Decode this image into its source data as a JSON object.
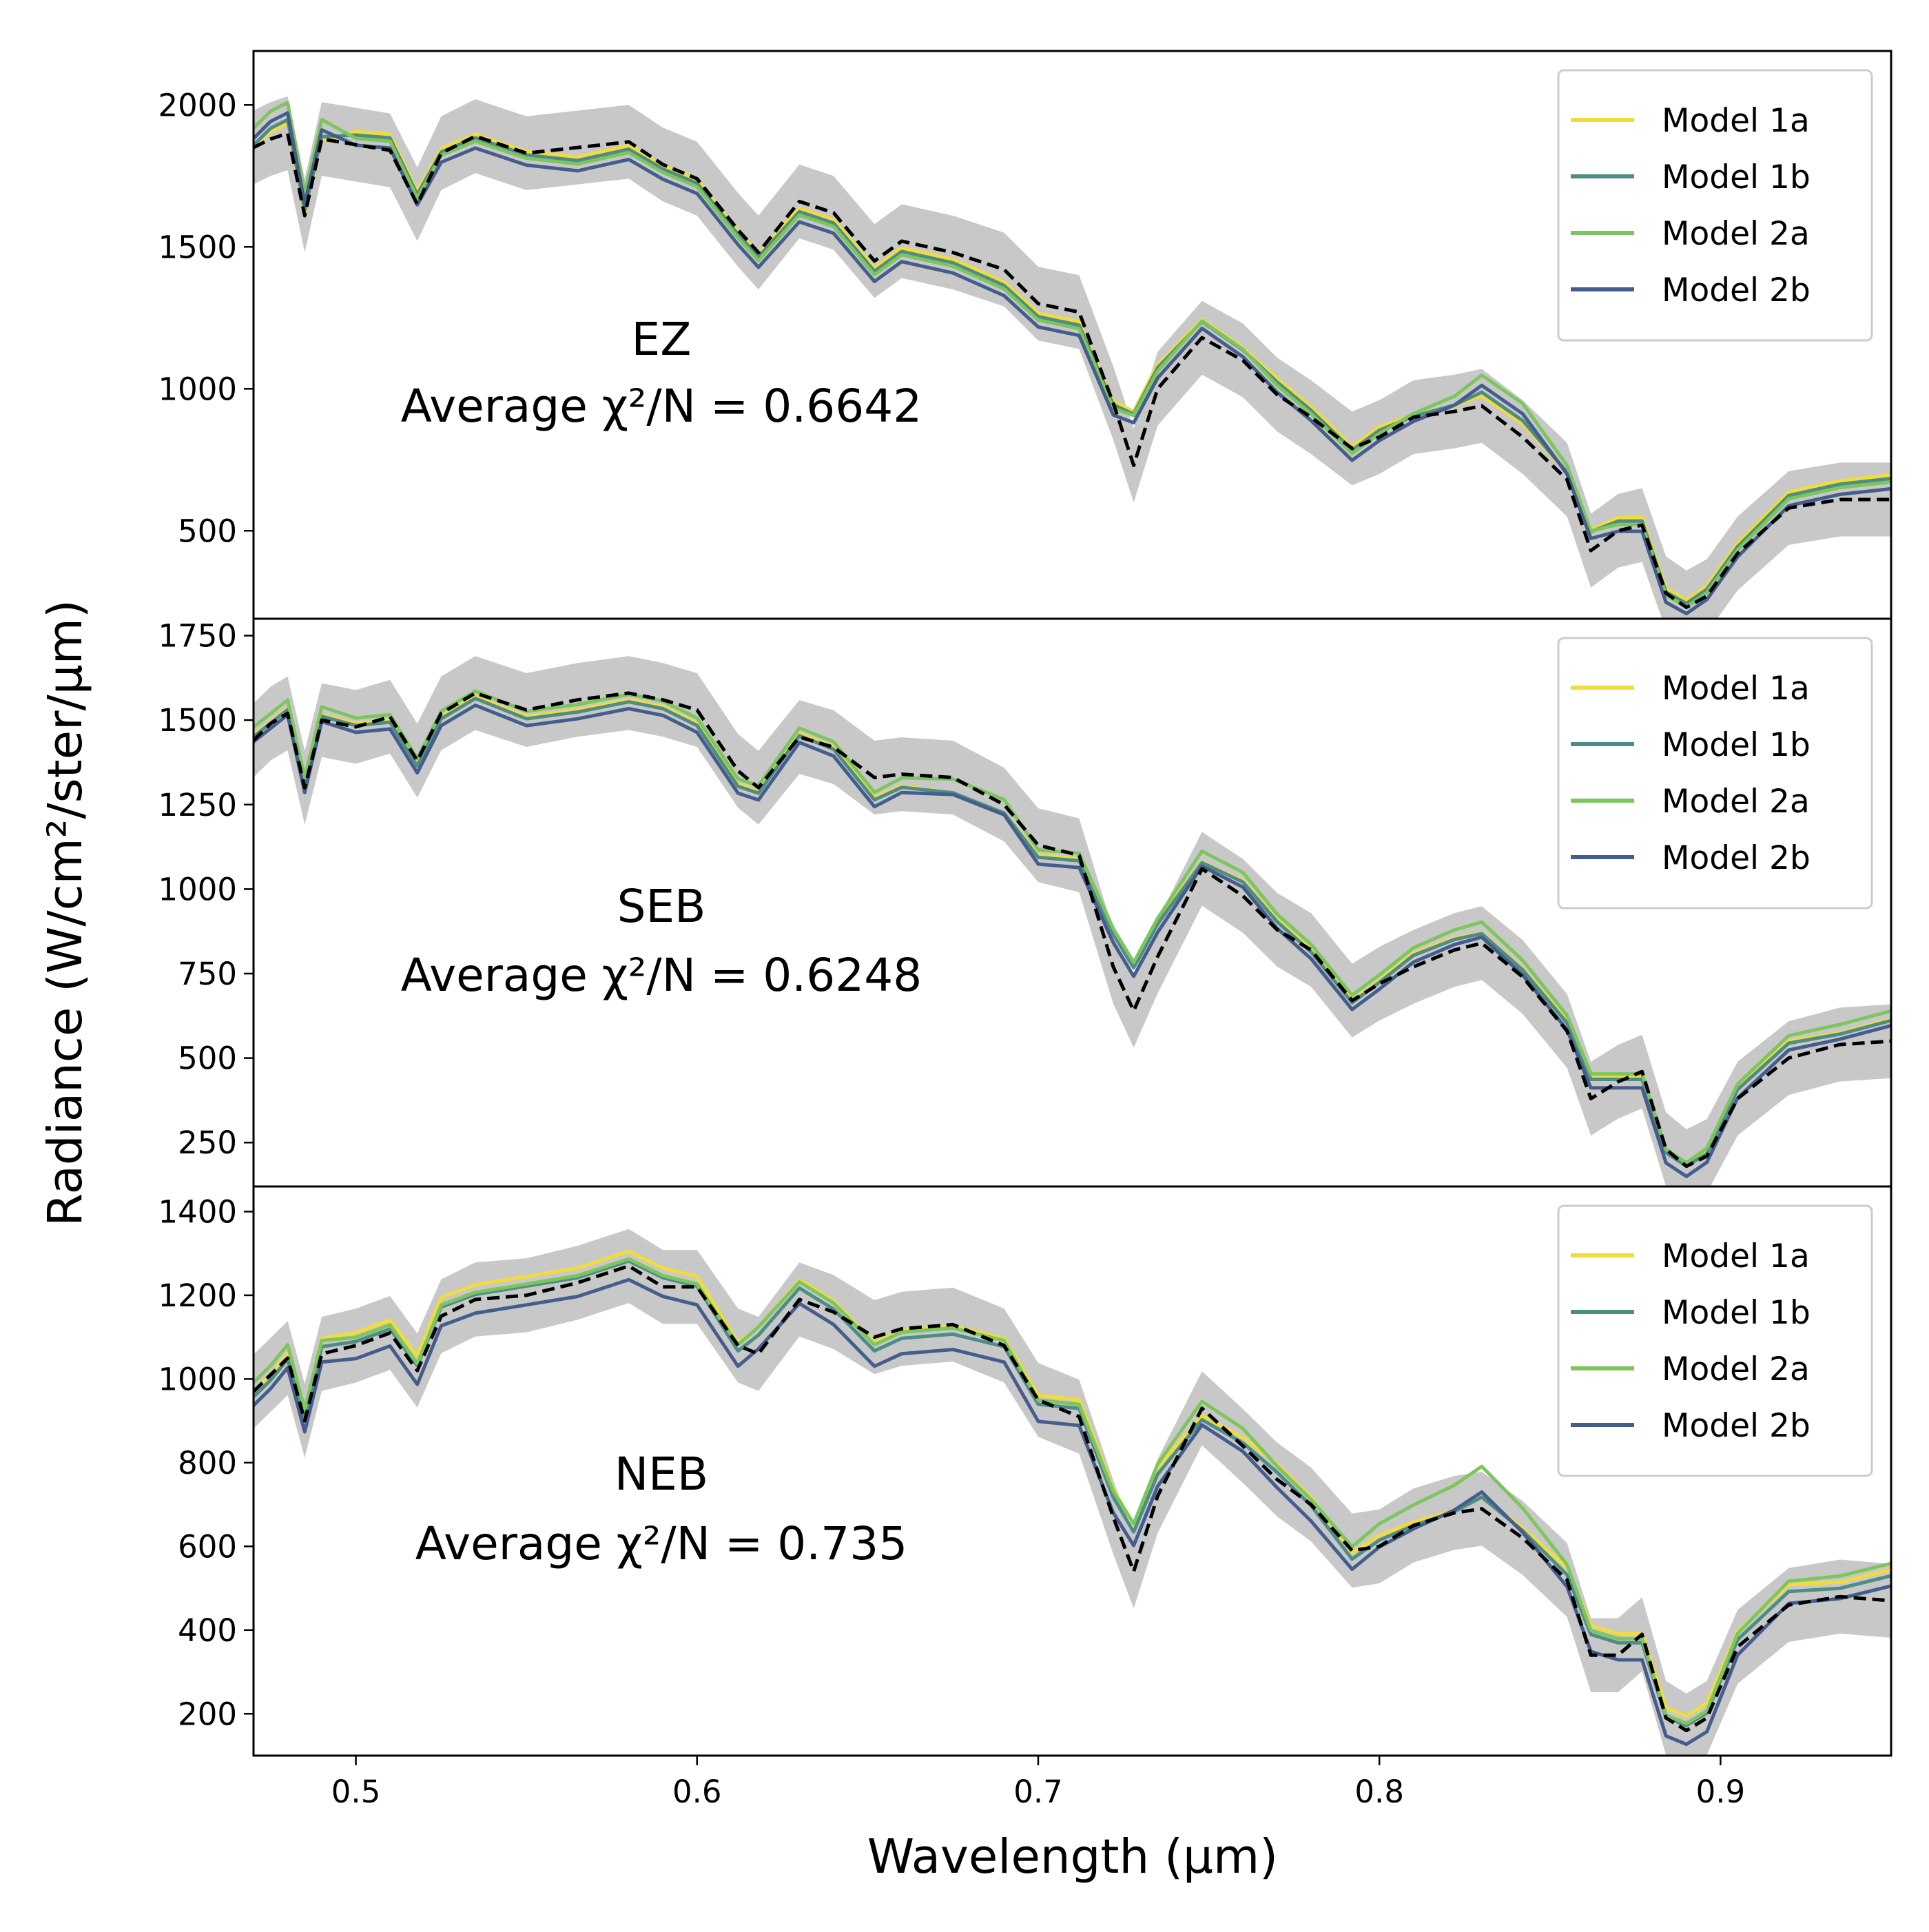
{
  "chart_data": {
    "type": "line",
    "xlabel": "Wavelength (µm)",
    "ylabel": "Radiance (W/cm²/ster/µm)",
    "xlim": [
      0.47,
      0.95
    ],
    "xticks": [
      0.5,
      0.6,
      0.7,
      0.8,
      0.9
    ],
    "xtick_labels": [
      "0.5",
      "0.6",
      "0.7",
      "0.8",
      "0.9"
    ],
    "legend_position": "top-right",
    "colors": {
      "Model 1a": "#f2dc3a",
      "Model 1b": "#4e8c86",
      "Model 2a": "#7dc65e",
      "Model 2b": "#445d8c",
      "observed": "#000000",
      "uncertainty": "#c8c8c8"
    },
    "panels": [
      {
        "region": "EZ",
        "annotation_line1": "EZ",
        "annotation_line2": "Average χ²/N = 0.6642",
        "ylim": [
          190,
          2190
        ],
        "yticks": [
          500,
          1000,
          1500,
          2000
        ],
        "ytick_labels": [
          "500",
          "1000",
          "1500",
          "2000"
        ],
        "legend": [
          "Model 1a",
          "Model 1b",
          "Model 2a",
          "Model 2b"
        ],
        "x": [
          0.47,
          0.475,
          0.48,
          0.485,
          0.49,
          0.5,
          0.51,
          0.518,
          0.525,
          0.535,
          0.55,
          0.565,
          0.58,
          0.59,
          0.6,
          0.612,
          0.618,
          0.63,
          0.64,
          0.652,
          0.66,
          0.675,
          0.69,
          0.7,
          0.712,
          0.722,
          0.728,
          0.735,
          0.748,
          0.76,
          0.77,
          0.78,
          0.792,
          0.8,
          0.81,
          0.822,
          0.83,
          0.842,
          0.855,
          0.862,
          0.87,
          0.877,
          0.884,
          0.89,
          0.896,
          0.905,
          0.92,
          0.935,
          0.95
        ],
        "observed": [
          1850,
          1880,
          1900,
          1610,
          1880,
          1860,
          1840,
          1650,
          1830,
          1890,
          1830,
          1850,
          1870,
          1790,
          1740,
          1560,
          1480,
          1660,
          1620,
          1450,
          1520,
          1480,
          1420,
          1300,
          1270,
          950,
          730,
          1000,
          1180,
          1100,
          980,
          900,
          790,
          830,
          900,
          920,
          940,
          830,
          680,
          430,
          500,
          520,
          280,
          230,
          270,
          420,
          580,
          610,
          610
        ],
        "model": [
          1870,
          1930,
          1960,
          1640,
          1900,
          1870,
          1860,
          1660,
          1810,
          1860,
          1800,
          1780,
          1820,
          1750,
          1700,
          1520,
          1440,
          1600,
          1560,
          1390,
          1460,
          1420,
          1340,
          1230,
          1200,
          920,
          890,
          1050,
          1220,
          1120,
          1000,
          900,
          760,
          830,
          890,
          940,
          1000,
          900,
          700,
          480,
          510,
          510,
          260,
          220,
          270,
          420,
          600,
          640,
          660
        ],
        "spread": [
          1,
          1,
          1,
          1,
          1,
          0,
          0,
          0,
          0,
          0,
          0,
          0,
          0,
          0,
          0,
          0,
          0,
          0,
          0,
          0,
          0,
          0,
          0,
          0,
          0,
          0,
          0.1,
          0,
          0.2,
          0.2,
          0,
          0,
          0,
          0,
          0.3,
          0.6,
          1,
          1,
          0.5,
          0.2,
          0,
          0,
          0,
          0,
          0,
          0,
          0,
          0,
          0
        ]
      },
      {
        "region": "SEB",
        "annotation_line1": "SEB",
        "annotation_line2": "Average χ²/N = 0.6248",
        "ylim": [
          120,
          1800
        ],
        "yticks": [
          250,
          500,
          750,
          1000,
          1250,
          1500,
          1750
        ],
        "ytick_labels": [
          "250",
          "500",
          "750",
          "1000",
          "1250",
          "1500",
          "1750"
        ],
        "legend": [
          "Model 1a",
          "Model 1b",
          "Model 2a",
          "Model 2b"
        ],
        "x": [
          0.47,
          0.475,
          0.48,
          0.485,
          0.49,
          0.5,
          0.51,
          0.518,
          0.525,
          0.535,
          0.55,
          0.565,
          0.58,
          0.59,
          0.6,
          0.612,
          0.618,
          0.63,
          0.64,
          0.652,
          0.66,
          0.675,
          0.69,
          0.7,
          0.712,
          0.722,
          0.728,
          0.735,
          0.748,
          0.76,
          0.77,
          0.78,
          0.792,
          0.8,
          0.81,
          0.822,
          0.83,
          0.842,
          0.855,
          0.862,
          0.87,
          0.877,
          0.884,
          0.89,
          0.896,
          0.905,
          0.92,
          0.935,
          0.95
        ],
        "observed": [
          1440,
          1490,
          1520,
          1300,
          1500,
          1480,
          1510,
          1380,
          1520,
          1580,
          1530,
          1560,
          1580,
          1560,
          1530,
          1350,
          1300,
          1450,
          1420,
          1330,
          1340,
          1330,
          1250,
          1130,
          1100,
          770,
          640,
          800,
          1060,
          980,
          880,
          820,
          670,
          720,
          770,
          820,
          840,
          740,
          580,
          380,
          430,
          460,
          230,
          180,
          210,
          380,
          500,
          540,
          550
        ],
        "model": [
          1450,
          1490,
          1530,
          1300,
          1510,
          1480,
          1490,
          1360,
          1500,
          1560,
          1500,
          1520,
          1550,
          1530,
          1480,
          1300,
          1280,
          1450,
          1410,
          1260,
          1300,
          1290,
          1230,
          1090,
          1080,
          860,
          760,
          890,
          1080,
          1020,
          900,
          810,
          660,
          720,
          800,
          850,
          870,
          760,
          600,
          430,
          430,
          430,
          210,
          170,
          210,
          400,
          540,
          570,
          610
        ],
        "spread": [
          0.3,
          0.3,
          0.3,
          0.3,
          0.3,
          0.2,
          0.2,
          0.2,
          0.2,
          0.2,
          0.2,
          0.2,
          0.2,
          0.2,
          0.2,
          0.2,
          0.2,
          0.2,
          0.2,
          0.2,
          0.3,
          0.5,
          0.5,
          0.2,
          0.2,
          0.1,
          0.1,
          0.1,
          0.4,
          0.3,
          0.2,
          0.2,
          0.2,
          0.2,
          0.2,
          0.3,
          0.4,
          0.3,
          0.2,
          0.1,
          0.1,
          0.1,
          0,
          0,
          0.1,
          0.1,
          0.2,
          0.3,
          0.3
        ]
      },
      {
        "region": "NEB",
        "annotation_line1": "NEB",
        "annotation_line2": "Average χ²/N = 0.735",
        "ylim": [
          100,
          1460
        ],
        "yticks": [
          200,
          400,
          600,
          800,
          1000,
          1200,
          1400
        ],
        "ytick_labels": [
          "200",
          "400",
          "600",
          "800",
          "1000",
          "1200",
          "1400"
        ],
        "legend": [
          "Model 1a",
          "Model 1b",
          "Model 2a",
          "Model 2b"
        ],
        "x": [
          0.47,
          0.475,
          0.48,
          0.485,
          0.49,
          0.5,
          0.51,
          0.518,
          0.525,
          0.535,
          0.55,
          0.565,
          0.58,
          0.59,
          0.6,
          0.612,
          0.618,
          0.63,
          0.64,
          0.652,
          0.66,
          0.675,
          0.69,
          0.7,
          0.712,
          0.722,
          0.728,
          0.735,
          0.748,
          0.76,
          0.77,
          0.78,
          0.792,
          0.8,
          0.81,
          0.822,
          0.83,
          0.842,
          0.855,
          0.862,
          0.87,
          0.877,
          0.884,
          0.89,
          0.896,
          0.905,
          0.92,
          0.935,
          0.95
        ],
        "observed": [
          970,
          1010,
          1050,
          900,
          1060,
          1080,
          1110,
          1020,
          1150,
          1190,
          1200,
          1230,
          1270,
          1220,
          1220,
          1080,
          1060,
          1190,
          1160,
          1100,
          1120,
          1130,
          1080,
          950,
          910,
          670,
          540,
          720,
          930,
          840,
          760,
          700,
          590,
          600,
          650,
          680,
          690,
          620,
          520,
          340,
          340,
          390,
          190,
          160,
          190,
          360,
          460,
          480,
          470
        ],
        "model": [
          950,
          990,
          1040,
          890,
          1060,
          1070,
          1100,
          1010,
          1150,
          1180,
          1200,
          1220,
          1260,
          1220,
          1200,
          1050,
          1090,
          1200,
          1150,
          1050,
          1080,
          1090,
          1060,
          920,
          910,
          700,
          620,
          760,
          900,
          840,
          760,
          680,
          560,
          610,
          650,
          690,
          730,
          640,
          520,
          370,
          350,
          350,
          170,
          150,
          180,
          360,
          480,
          490,
          520
        ],
        "spread": [
          0.7,
          0.7,
          0.7,
          0.5,
          0.3,
          0.2,
          0.2,
          0.1,
          0.1,
          0.1,
          0.1,
          0.1,
          0.1,
          0.1,
          0.1,
          0.3,
          0.4,
          0.3,
          0.3,
          0.3,
          0.3,
          0.3,
          0.3,
          0.2,
          0.2,
          0.3,
          0.4,
          0.5,
          0.9,
          0.7,
          0.3,
          0.3,
          0.6,
          0.8,
          1,
          1.3,
          1.5,
          1.1,
          0.5,
          0.2,
          0.2,
          0.2,
          0.1,
          0.1,
          0.1,
          0.3,
          0.5,
          0.6,
          0.6
        ]
      }
    ]
  }
}
